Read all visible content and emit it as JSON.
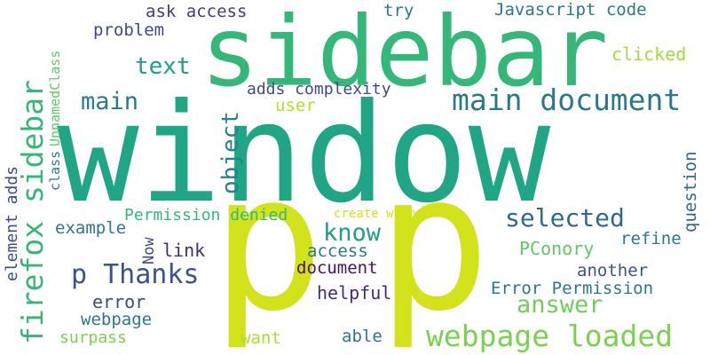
{
  "word_cloud": {
    "background": "#ffffff",
    "words": [
      {
        "id": "window",
        "text": "window",
        "color": "#21a685"
      },
      {
        "id": "sidebar-large",
        "text": "sidebar",
        "color": "#35b779"
      },
      {
        "id": "p-left",
        "text": "p",
        "color": "#d2e21b"
      },
      {
        "id": "p-right",
        "text": "p",
        "color": "#d2e21b"
      },
      {
        "id": "main-document",
        "text": "main document",
        "color": "#2a788e"
      },
      {
        "id": "webpage-loaded",
        "text": "webpage loaded",
        "color": "#7ad151"
      },
      {
        "id": "firefox-sidebar",
        "text": "firefox sidebar",
        "color": "#35b779"
      },
      {
        "id": "p-thanks",
        "text": "p Thanks",
        "color": "#3b528b"
      },
      {
        "id": "selected",
        "text": "selected",
        "color": "#31688e"
      },
      {
        "id": "know",
        "text": "know",
        "color": "#1f9e89"
      },
      {
        "id": "answer",
        "text": "answer",
        "color": "#6ece58"
      },
      {
        "id": "main",
        "text": "main",
        "color": "#2a788e"
      },
      {
        "id": "text",
        "text": "text",
        "color": "#1f9e89"
      },
      {
        "id": "object",
        "text": "object",
        "color": "#26828e"
      },
      {
        "id": "ask-access",
        "text": "ask access",
        "color": "#443983"
      },
      {
        "id": "problem",
        "text": "problem",
        "color": "#3e4989"
      },
      {
        "id": "try",
        "text": "try",
        "color": "#2a788e"
      },
      {
        "id": "javascript-code",
        "text": "Javascript code",
        "color": "#2a788e"
      },
      {
        "id": "clicked",
        "text": "clicked",
        "color": "#a5db36"
      },
      {
        "id": "adds-complexity",
        "text": "adds complexity",
        "color": "#3e4989"
      },
      {
        "id": "user",
        "text": "user",
        "color": "#b5de2b"
      },
      {
        "id": "unnamed-class",
        "text": "UnnamedClass",
        "color": "#5ec962"
      },
      {
        "id": "class",
        "text": "class",
        "color": "#2a788e"
      },
      {
        "id": "element-adds",
        "text": "element adds",
        "color": "#3e4989"
      },
      {
        "id": "example",
        "text": "example",
        "color": "#2a788e"
      },
      {
        "id": "permission-denied",
        "text": "Permission denied",
        "color": "#35b779"
      },
      {
        "id": "create-wrapper",
        "text": "create wrapper",
        "color": "#d2e21b"
      },
      {
        "id": "question",
        "text": "question",
        "color": "#31688e"
      },
      {
        "id": "refine",
        "text": "refine",
        "color": "#2a788e"
      },
      {
        "id": "link",
        "text": "link",
        "color": "#482878"
      },
      {
        "id": "access",
        "text": "access",
        "color": "#2a788e"
      },
      {
        "id": "pconory",
        "text": "PConory",
        "color": "#5ec962"
      },
      {
        "id": "now",
        "text": "Now",
        "color": "#3e4989"
      },
      {
        "id": "document",
        "text": "document",
        "color": "#471164"
      },
      {
        "id": "another",
        "text": "another",
        "color": "#3b528b"
      },
      {
        "id": "error-permission",
        "text": "Error Permission",
        "color": "#2a788e"
      },
      {
        "id": "error",
        "text": "error",
        "color": "#3e4989"
      },
      {
        "id": "helpful",
        "text": "helpful",
        "color": "#482878"
      },
      {
        "id": "webpage",
        "text": "webpage",
        "color": "#2a788e"
      },
      {
        "id": "surpass",
        "text": "surpass",
        "color": "#7ad151"
      },
      {
        "id": "want",
        "text": "want",
        "color": "#addc30"
      },
      {
        "id": "able",
        "text": "able",
        "color": "#2a788e"
      }
    ]
  }
}
